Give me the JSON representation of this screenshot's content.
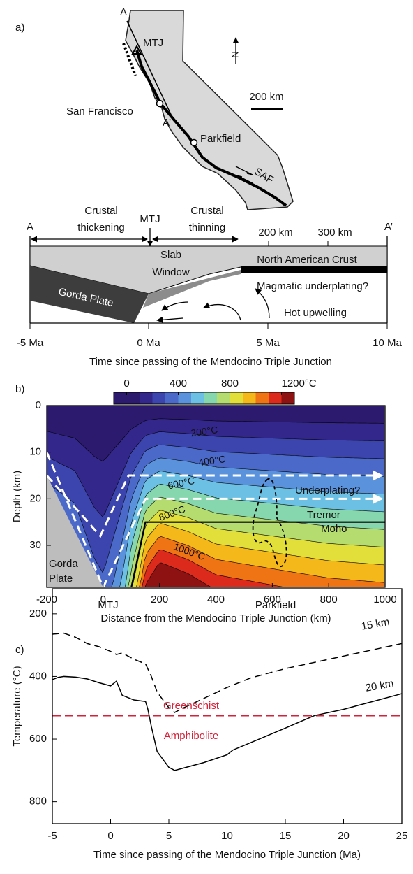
{
  "panel_a": {
    "label": "a)",
    "map": {
      "A": "A",
      "MTJ": "MTJ",
      "north": "N",
      "scale_bar": "200 km",
      "san_francisco": "San Francisco",
      "a_prime": "A’",
      "parkfield": "Parkfield",
      "saf": "SAF"
    },
    "section": {
      "A": "A",
      "a_prime": "A’",
      "crustal_thickening": [
        "Crustal",
        "thickening"
      ],
      "mtj": "MTJ",
      "crustal_thinning": [
        "Crustal",
        "thinning"
      ],
      "distances": [
        "200 km",
        "300 km"
      ],
      "slab_window": [
        "Slab",
        "Window"
      ],
      "north_american_crust": "North American Crust",
      "gorda_plate": "Gorda Plate",
      "magmatic_underplating": "Magmatic underplating?",
      "hot_upwelling": "Hot upwelling",
      "times": [
        "-5 Ma",
        "0 Ma",
        "5 Ma",
        "10 Ma"
      ],
      "xlabel": "Time since passing of the Mendocino Triple Junction"
    }
  },
  "chart_data": [
    {
      "type": "contour",
      "label": "b)",
      "xlabel": "Distance from the Mendocino Triple Junction (km)",
      "ylabel": "Depth (km)",
      "xlim": [
        -200,
        1000
      ],
      "ylim": [
        0,
        39
      ],
      "y_inverted": true,
      "xticks": [
        -200,
        0,
        200,
        400,
        600,
        800,
        1000
      ],
      "yticks": [
        0,
        10,
        20,
        30
      ],
      "levels": [
        0,
        100,
        200,
        300,
        400,
        500,
        600,
        700,
        800,
        900,
        1000,
        1100,
        1200
      ],
      "colors": [
        "#2b1a6e",
        "#33278c",
        "#3c44ad",
        "#4a69c9",
        "#5a93dc",
        "#6cc0e4",
        "#86d6ae",
        "#b4dc6e",
        "#e2de3a",
        "#f5b81a",
        "#ef7514",
        "#dc2a1c",
        "#8e1212"
      ],
      "clim": [
        -100,
        1300
      ],
      "colorbar_ticks": [
        0,
        400,
        800,
        {
          "value": 1200,
          "label": "1200°C"
        }
      ],
      "contour_labels": [
        "200°C",
        "400°C",
        "600°C",
        "800°C",
        "1000°C"
      ],
      "annotations": {
        "tremor": "Tremor",
        "underplating": "Underplating?",
        "moho": "Moho",
        "gorda_plate": [
          "Gorda",
          "Plate"
        ]
      }
    },
    {
      "type": "line",
      "label": "c)",
      "xlabel": "Time since passing of the Mendocino Triple Junction (Ma)",
      "ylabel": "Temperature (°C)",
      "xlim": [
        -5,
        25
      ],
      "ylim": [
        120,
        870
      ],
      "y_inverted": true,
      "xticks": [
        -5,
        0,
        5,
        10,
        15,
        20,
        25
      ],
      "yticks": [
        200,
        400,
        600,
        800
      ],
      "series": [
        {
          "name": "15 km",
          "color": "#000000",
          "dashed": true,
          "x": [
            -5,
            -4,
            -3,
            -2,
            -1,
            0,
            0.5,
            1,
            2,
            3,
            3.5,
            4,
            5,
            5.5,
            6,
            8,
            10,
            12,
            15,
            20,
            25
          ],
          "values": [
            265,
            262,
            275,
            295,
            305,
            320,
            330,
            325,
            345,
            360,
            400,
            450,
            500,
            515,
            505,
            470,
            435,
            405,
            375,
            335,
            295
          ]
        },
        {
          "name": "20 km",
          "color": "#000000",
          "dashed": false,
          "x": [
            -5,
            -4.5,
            -4,
            -3,
            -2,
            -1,
            0,
            0.5,
            1,
            2,
            3,
            3.2,
            3.5,
            4,
            5,
            5.5,
            6,
            8,
            10,
            10.5,
            15,
            17.5,
            20,
            25
          ],
          "values": [
            410,
            403,
            400,
            402,
            408,
            420,
            430,
            415,
            460,
            475,
            480,
            505,
            560,
            640,
            690,
            700,
            695,
            675,
            650,
            635,
            565,
            525,
            505,
            455
          ]
        }
      ],
      "reference_line": {
        "value": 525,
        "color": "#d6213a"
      },
      "annotations": {
        "mtj": "MTJ",
        "parkfield": "Parkfield",
        "greenschist": "Greenschist",
        "amphibolite": "Amphibolite"
      }
    }
  ]
}
